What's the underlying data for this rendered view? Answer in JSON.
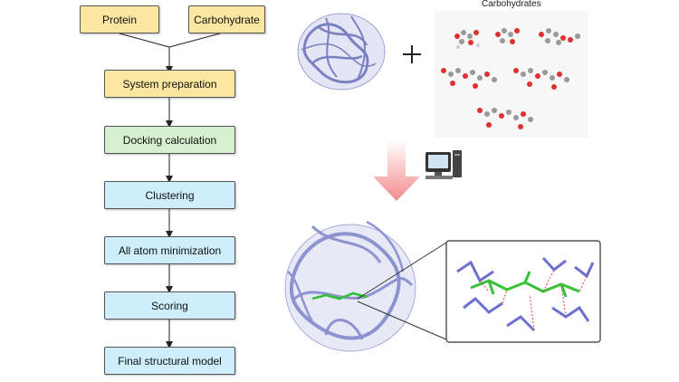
{
  "flow": {
    "protein": "Protein",
    "carbohydrate": "Carbohydrate",
    "steps": [
      "System preparation",
      "Docking calculation",
      "Clustering",
      "All atom minimization",
      "Scoring",
      "Final structural model"
    ]
  },
  "right": {
    "carbohydrates_title": "Carbohydrates",
    "plus": "+"
  },
  "colors": {
    "yellow": "#fbe7a1",
    "green": "#d6efcf",
    "blue": "#cdeefa",
    "protein": "#8d93cf",
    "arrow": "#f08080"
  }
}
